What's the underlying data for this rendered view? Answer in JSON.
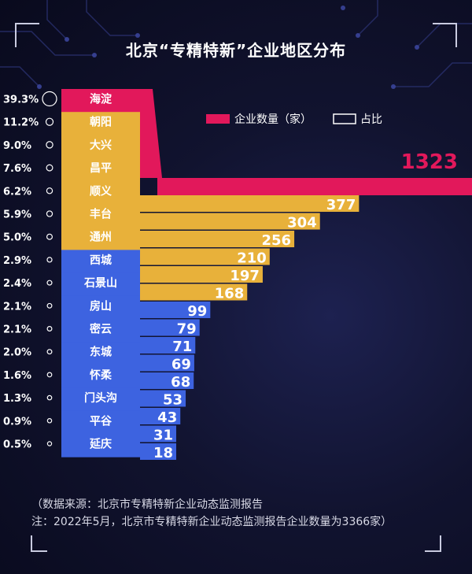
{
  "title": "北京“专精特新”企业地区分布",
  "chart_data": {
    "type": "bar",
    "title": "北京“专精特新”企业地区分布",
    "legend": [
      {
        "name": "企业数量（家）",
        "style": "filled",
        "color": "#e2185b"
      },
      {
        "name": "占比",
        "style": "outline",
        "color": "#ffffff"
      }
    ],
    "legend_position": "top-right",
    "categories": [
      "海淀",
      "朝阳",
      "大兴",
      "昌平",
      "顺义",
      "丰台",
      "通州",
      "西城",
      "石景山",
      "房山",
      "密云",
      "东城",
      "怀柔",
      "门头沟",
      "平谷",
      "延庆"
    ],
    "values": [
      1323,
      377,
      304,
      256,
      210,
      197,
      168,
      99,
      79,
      71,
      69,
      68,
      53,
      43,
      31,
      18
    ],
    "value_labels": [
      "1323",
      "377",
      "304",
      "256",
      "210",
      "197",
      "168",
      "99",
      "79",
      "71",
      "69",
      "68",
      "53",
      "43",
      "31",
      "18"
    ],
    "shares": [
      "39.3%",
      "11.2%",
      "9.0%",
      "7.6%",
      "6.2%",
      "5.9%",
      "5.0%",
      "2.9%",
      "2.4%",
      "2.1%",
      "2.1%",
      "2.0%",
      "1.6%",
      "1.3%",
      "0.9%",
      "0.5%"
    ],
    "share_values": [
      39.3,
      11.2,
      9.0,
      7.6,
      6.2,
      5.9,
      5.0,
      2.9,
      2.4,
      2.1,
      2.1,
      2.0,
      1.6,
      1.3,
      0.9,
      0.5
    ],
    "group_colors": {
      "top": "#e2185b",
      "mid": "#e8b13a",
      "low": "#3d63e0"
    },
    "groups": [
      "top",
      "mid",
      "mid",
      "mid",
      "mid",
      "mid",
      "mid",
      "low",
      "low",
      "low",
      "low",
      "low",
      "low",
      "low",
      "low",
      "low"
    ],
    "grid": false
  },
  "notes": {
    "source": "（数据来源：北京市专精特新企业动态监测报告",
    "note": "注：2022年5月，北京市专精特新企业动态监测报告企业数量为3366家）"
  }
}
